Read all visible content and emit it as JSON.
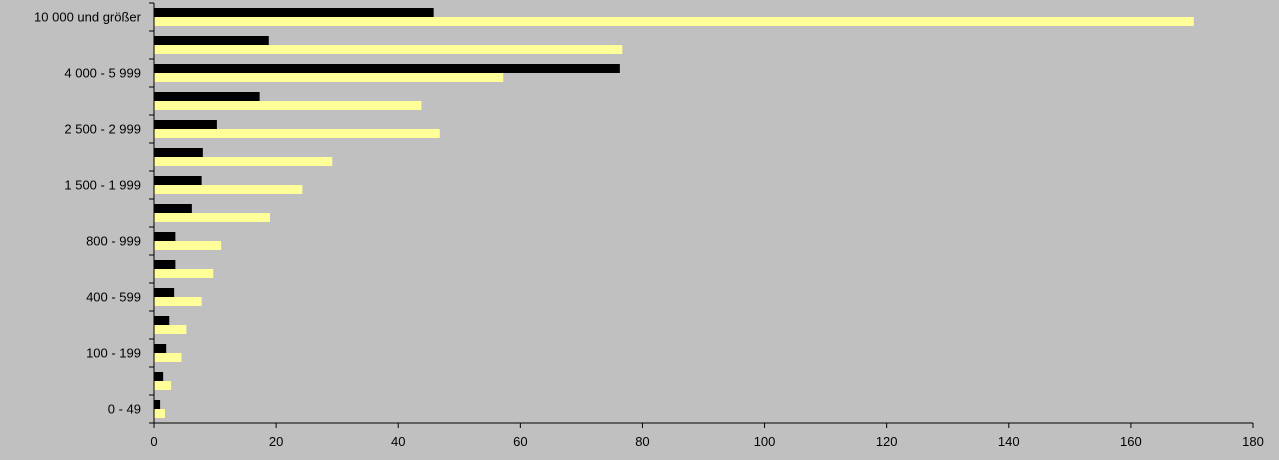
{
  "chart_data": {
    "type": "bar",
    "orientation": "horizontal",
    "title": "",
    "xlabel": "",
    "ylabel": "",
    "xlim": [
      0,
      180
    ],
    "x_ticks": [
      0,
      20,
      40,
      60,
      80,
      100,
      120,
      140,
      160,
      180
    ],
    "grid": false,
    "legend": "none",
    "colors": {
      "background": "#c0c0c0",
      "series_1": "#000000",
      "series_2": "#ffff99"
    },
    "categories": [
      "0 - 49",
      "",
      "100 - 199",
      "",
      "400 - 599",
      "",
      "800 - 999",
      "",
      "1 500 - 1 999",
      "",
      "2 500 - 2 999",
      "",
      "4 000 - 5 999",
      "",
      "10 000 und größer"
    ],
    "series": [
      {
        "values": [
          1.0,
          1.5,
          2.0,
          2.5,
          3.3,
          3.5,
          3.5,
          6.2,
          7.8,
          8.0,
          10.3,
          17.3,
          76.3,
          18.8,
          45.8
        ]
      },
      {
        "values": [
          1.8,
          2.8,
          4.5,
          5.3,
          7.8,
          9.7,
          11.0,
          19.0,
          24.3,
          29.2,
          46.8,
          43.8,
          57.2,
          76.7,
          170.3
        ]
      }
    ]
  }
}
